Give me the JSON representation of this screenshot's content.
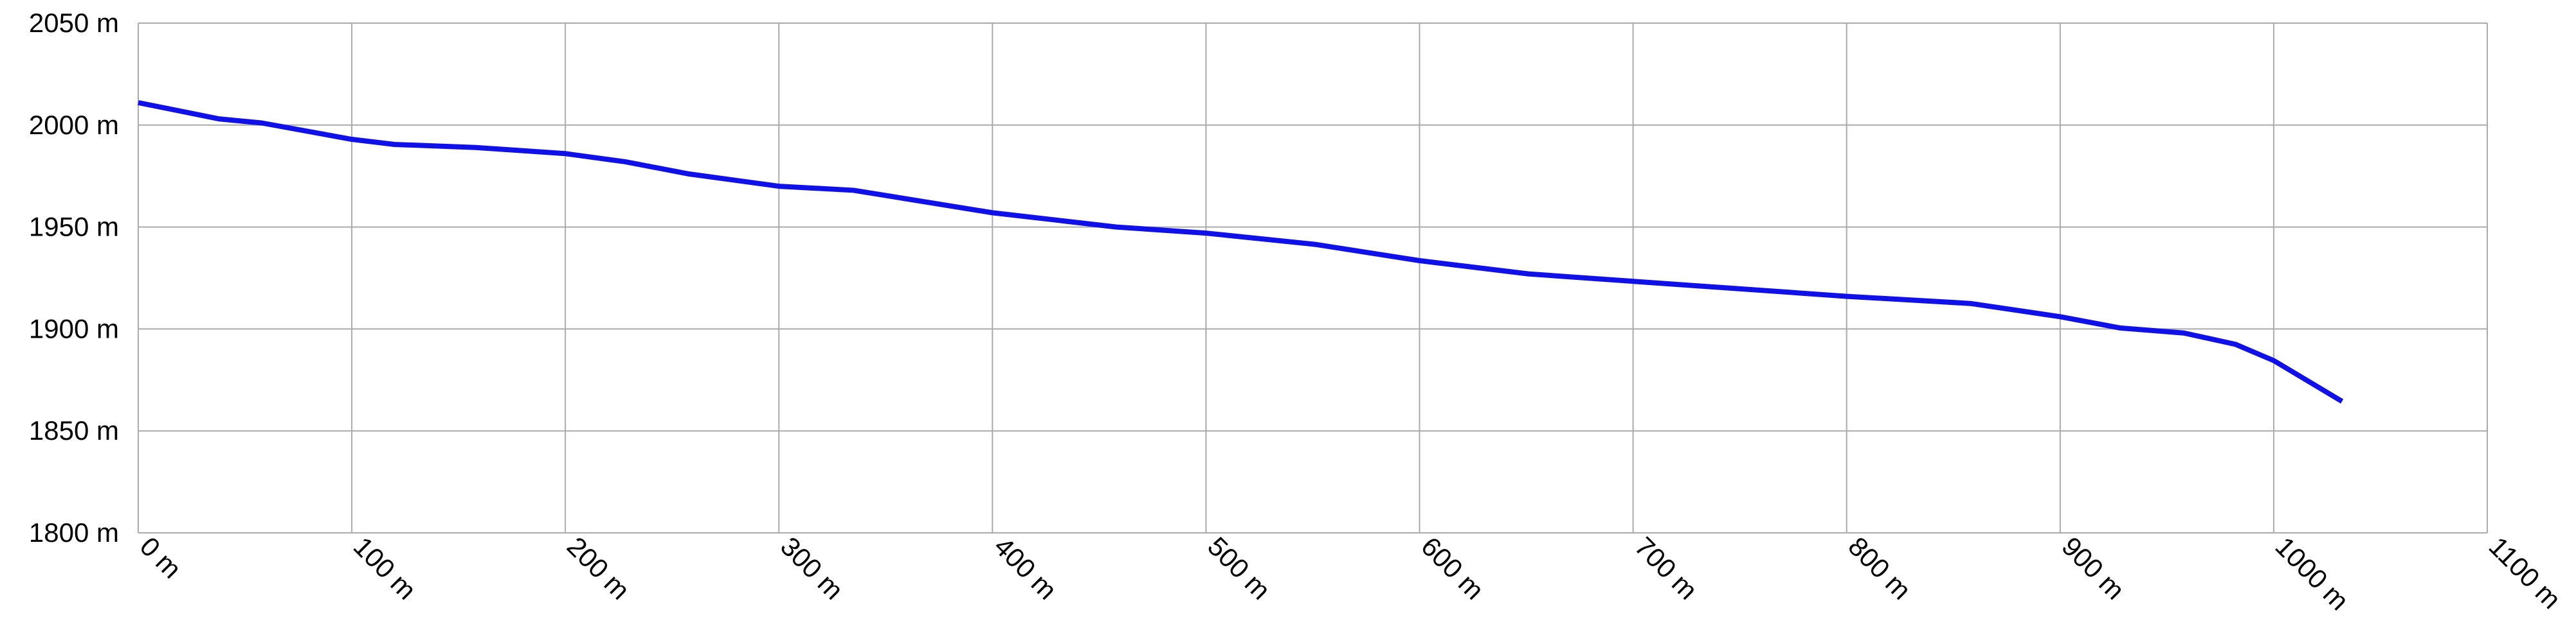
{
  "chart_data": {
    "type": "line",
    "x": [
      0,
      38,
      58,
      100,
      120,
      158,
      200,
      228,
      258,
      300,
      335,
      400,
      458,
      500,
      551,
      600,
      651,
      705,
      800,
      858,
      900,
      928,
      958,
      982,
      1000,
      1032
    ],
    "series": [
      {
        "color": "#1010e8",
        "values": [
          2011,
          2003,
          2001,
          1993,
          1990.5,
          1989,
          1986,
          1982,
          1976,
          1970,
          1968,
          1957,
          1950,
          1947,
          1941.5,
          1933.5,
          1927,
          1923,
          1916,
          1912.5,
          1906,
          1900.5,
          1898,
          1892.5,
          1884.5,
          1864.5
        ]
      }
    ],
    "xlim": [
      0,
      1100
    ],
    "xticks": [
      {
        "value": 0,
        "label": "0 m"
      },
      {
        "value": 100,
        "label": "100 m"
      },
      {
        "value": 200,
        "label": "200 m"
      },
      {
        "value": 300,
        "label": "300 m"
      },
      {
        "value": 400,
        "label": "400 m"
      },
      {
        "value": 500,
        "label": "500 m"
      },
      {
        "value": 600,
        "label": "600 m"
      },
      {
        "value": 700,
        "label": "700 m"
      },
      {
        "value": 800,
        "label": "800 m"
      },
      {
        "value": 900,
        "label": "900 m"
      },
      {
        "value": 1000,
        "label": "1000 m"
      },
      {
        "value": 1100,
        "label": "1100 m"
      }
    ],
    "ylim": [
      1800,
      2050
    ],
    "yticks": [
      {
        "value": 1800,
        "label": "1800 m"
      },
      {
        "value": 1850,
        "label": "1850 m"
      },
      {
        "value": 1900,
        "label": "1900 m"
      },
      {
        "value": 1950,
        "label": "1950 m"
      },
      {
        "value": 2000,
        "label": "2000 m"
      },
      {
        "value": 2050,
        "label": "2050 m"
      }
    ],
    "grid": true
  }
}
